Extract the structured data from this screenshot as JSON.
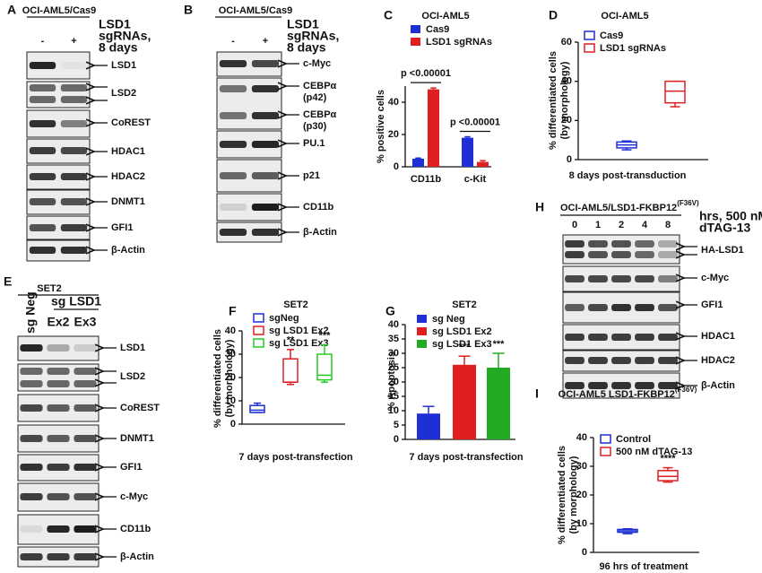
{
  "blots": [
    {
      "letter": "A",
      "header": "OCI-AML5/Cas9",
      "lanes": [
        "-",
        "+"
      ],
      "lane_note": [
        "LSD1",
        "sgRNAs,",
        "8 days"
      ],
      "bands": [
        "LSD1",
        "LSD2",
        "CoREST",
        "HDAC1",
        "HDAC2",
        "DNMT1",
        "GFI1",
        "β-Actin"
      ]
    },
    {
      "letter": "B",
      "header": "OCI-AML5/Cas9",
      "lanes": [
        "-",
        "+"
      ],
      "lane_note": [
        "LSD1",
        "sgRNAs,",
        "8 days"
      ],
      "bands": [
        "c-Myc",
        [
          "CEBPα",
          "(p42)"
        ],
        [
          "CEBPα",
          "(p30)"
        ],
        "PU.1",
        "p21",
        "CD11b",
        "β-Actin"
      ]
    },
    {
      "letter": "E",
      "header": "SET2",
      "lane_group": "sg LSD1",
      "lanes": [
        "sg Neg",
        "Ex2",
        "Ex3"
      ],
      "bands": [
        "LSD1",
        "LSD2",
        "CoREST",
        "DNMT1",
        "GFI1",
        "c-Myc",
        "CD11b",
        "β-Actin"
      ]
    },
    {
      "letter": "H",
      "header": "OCI-AML5/LSD1-FKBP12",
      "header_sup": "(F36V)",
      "lanes": [
        "0",
        "1",
        "2",
        "4",
        "8"
      ],
      "lane_note": [
        "hrs, 500 nM",
        "dTAG-13"
      ],
      "bands": [
        "HA-LSD1",
        "c-Myc",
        "GFI1",
        "HDAC1",
        "HDAC2",
        "β-Actin"
      ]
    }
  ],
  "chart_data": [
    {
      "type": "bar",
      "letter": "C",
      "title": "OCI-AML5",
      "ylabel": [
        "% positive cells"
      ],
      "categories": [
        "CD11b",
        "c-Kit"
      ],
      "series": [
        {
          "name": "Cas9",
          "color": "#1f2fd6",
          "values": [
            5,
            18
          ],
          "errors": [
            0.4,
            0.6
          ]
        },
        {
          "name": "LSD1 sgRNAs",
          "color": "#e02020",
          "values": [
            48,
            3
          ],
          "errors": [
            0.8,
            0.8
          ]
        }
      ],
      "annotations": [
        "p <0.00001",
        "p <0.00001"
      ],
      "ylim": [
        0,
        50
      ],
      "yticks": [
        0,
        20,
        40
      ]
    },
    {
      "type": "box",
      "letter": "D",
      "title": "OCI-AML5",
      "ylabel": [
        "% differentiated cells",
        "(by morphology)"
      ],
      "xlabel": "8 days post-transduction",
      "series": [
        {
          "name": "Cas9",
          "color": "#1f2fd6",
          "min": 5,
          "q1": 6,
          "median": 7.5,
          "q3": 9,
          "max": 9.5
        },
        {
          "name": "LSD1 sgRNAs",
          "color": "#e02020",
          "min": 27,
          "q1": 29,
          "median": 35,
          "q3": 40,
          "max": 40
        }
      ],
      "ylim": [
        0,
        60
      ],
      "yticks": [
        0,
        20,
        40,
        60
      ]
    },
    {
      "type": "box",
      "letter": "F",
      "title": "SET2",
      "ylabel": [
        "% differentiated cells",
        "(by morphology)"
      ],
      "xlabel": "7 days post-transfection",
      "series": [
        {
          "name": "sgNeg",
          "color": "#1f2fd6",
          "min": 5,
          "q1": 5,
          "median": 6,
          "q3": 8,
          "max": 9
        },
        {
          "name": "sg LSD1 Ex2",
          "color": "#e02020",
          "min": 17,
          "q1": 18,
          "median": 18,
          "q3": 28,
          "max": 32
        },
        {
          "name": "sg LSD1 Ex3",
          "color": "#22cc22",
          "min": 18,
          "q1": 19,
          "median": 21,
          "q3": 30,
          "max": 34
        }
      ],
      "annotations": [
        null,
        "**",
        "***"
      ],
      "ylim": [
        0,
        40
      ],
      "yticks": [
        0,
        10,
        20,
        30,
        40
      ]
    },
    {
      "type": "bar",
      "letter": "G",
      "title": "SET2",
      "ylabel": [
        "% Apoptosis"
      ],
      "xlabel": "7 days post-transfection",
      "series": [
        {
          "name": "sg Neg",
          "color": "#1f2fd6",
          "values": [
            9
          ],
          "errors": [
            2.5
          ]
        },
        {
          "name": "sg LSD1 Ex2",
          "color": "#e02020",
          "values": [
            26
          ],
          "errors": [
            3
          ]
        },
        {
          "name": "sg LSD1 Ex3",
          "color": "#22aa22",
          "values": [
            25
          ],
          "errors": [
            5
          ]
        }
      ],
      "annotations": [
        null,
        "***",
        "***"
      ],
      "ylim": [
        0,
        40
      ],
      "yticks": [
        0,
        5,
        10,
        15,
        20,
        25,
        30,
        35,
        40
      ]
    },
    {
      "type": "box",
      "letter": "I",
      "title": "OCI-AML5 LSD1-FKBP12",
      "title_sup": "(F36V)",
      "ylabel": [
        "% differentiated cells",
        "(by morphology)"
      ],
      "xlabel": "96 hrs of treatment",
      "series": [
        {
          "name": "Control",
          "color": "#1f2fd6",
          "min": 6.5,
          "q1": 7,
          "median": 7.5,
          "q3": 8,
          "max": 8.2
        },
        {
          "name": "500 nM dTAG-13",
          "color": "#e02020",
          "min": 24.5,
          "q1": 25,
          "median": 26.5,
          "q3": 28.5,
          "max": 29.5
        }
      ],
      "annotations": [
        null,
        "****"
      ],
      "ylim": [
        0,
        40
      ],
      "yticks": [
        0,
        10,
        20,
        30,
        40
      ]
    }
  ]
}
